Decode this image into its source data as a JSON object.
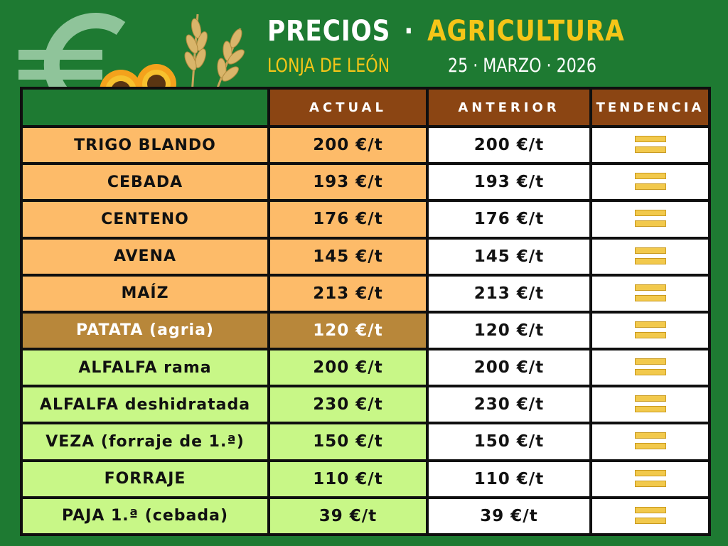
{
  "header": {
    "title_part1": "PRECIOS",
    "separator": "·",
    "title_part2": "AGRICULTURA",
    "source": "LONJA DE LEÓN",
    "date": "25 · MARZO · 2026"
  },
  "logo": {
    "icon": "euro-icon",
    "decoration": [
      "sunflower-icon",
      "wheat-icon"
    ]
  },
  "table": {
    "columns": [
      "ACTUAL",
      "ANTERIOR",
      "TENDENCIA"
    ],
    "rows": [
      {
        "name": "TRIGO BLANDO",
        "actual": "200 €/t",
        "anterior": "200 €/t",
        "tendencia": "equal",
        "group": "cereal"
      },
      {
        "name": "CEBADA",
        "actual": "193 €/t",
        "anterior": "193 €/t",
        "tendencia": "equal",
        "group": "cereal"
      },
      {
        "name": "CENTENO",
        "actual": "176 €/t",
        "anterior": "176 €/t",
        "tendencia": "equal",
        "group": "cereal"
      },
      {
        "name": "AVENA",
        "actual": "145 €/t",
        "anterior": "145 €/t",
        "tendencia": "equal",
        "group": "cereal"
      },
      {
        "name": "MAÍZ",
        "actual": "213 €/t",
        "anterior": "213 €/t",
        "tendencia": "equal",
        "group": "cereal"
      },
      {
        "name": "PATATA (agria)",
        "actual": "120 €/t",
        "anterior": "120 €/t",
        "tendencia": "equal",
        "group": "tuber"
      },
      {
        "name": "ALFALFA rama",
        "actual": "200 €/t",
        "anterior": "200 €/t",
        "tendencia": "equal",
        "group": "forage"
      },
      {
        "name": "ALFALFA deshidratada",
        "actual": "230 €/t",
        "anterior": "230 €/t",
        "tendencia": "equal",
        "group": "forage"
      },
      {
        "name": "VEZA (forraje de 1.ª)",
        "actual": "150 €/t",
        "anterior": "150 €/t",
        "tendencia": "equal",
        "group": "forage"
      },
      {
        "name": "FORRAJE",
        "actual": "110 €/t",
        "anterior": "110 €/t",
        "tendencia": "equal",
        "group": "forage"
      },
      {
        "name": "PAJA 1.ª (cebada)",
        "actual": "39 €/t",
        "anterior": "39 €/t",
        "tendencia": "equal",
        "group": "forage"
      }
    ]
  },
  "colors": {
    "background": "#1e7a32",
    "header_cells": "#8b4513",
    "cereal": "#fdbb69",
    "tuber": "#b8873a",
    "forage": "#c8f787",
    "accent": "#f5c518"
  }
}
